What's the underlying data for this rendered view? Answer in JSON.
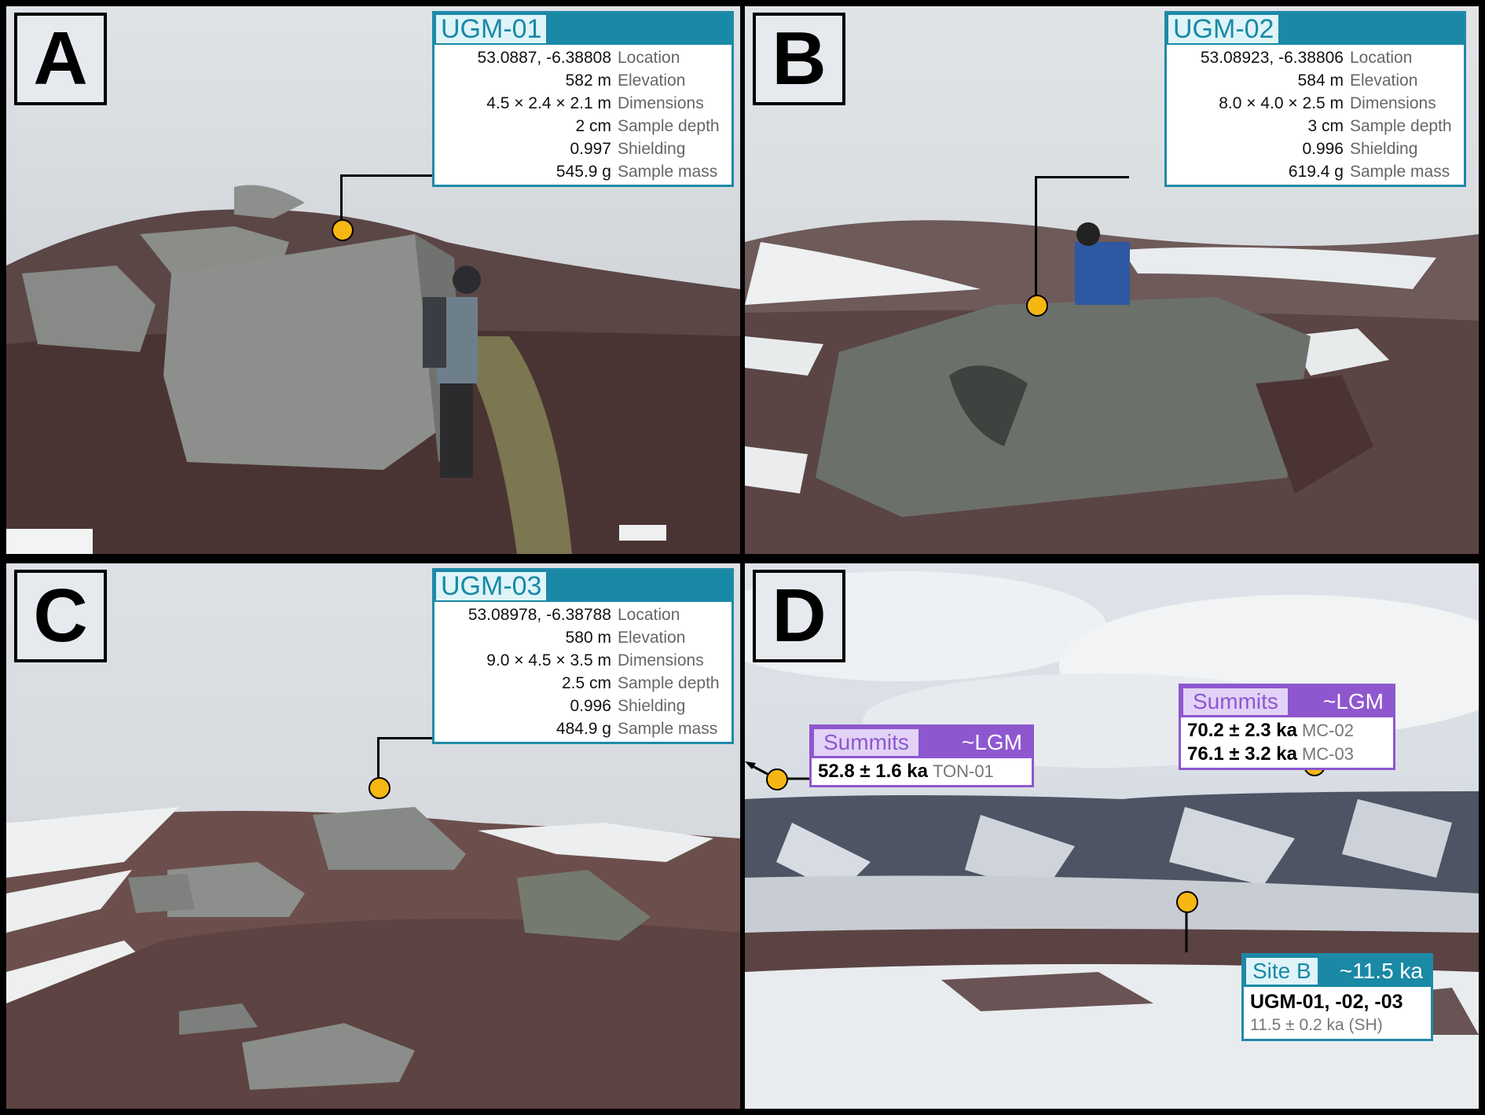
{
  "panels": {
    "A": {
      "letter": "A",
      "sample_id": "UGM-01",
      "rows": [
        {
          "value": "53.0887, -6.38808",
          "label": "Location"
        },
        {
          "value": "582 m",
          "label": "Elevation"
        },
        {
          "value": "4.5 × 2.4 × 2.1 m",
          "label": "Dimensions"
        },
        {
          "value": "2 cm",
          "label": "Sample depth"
        },
        {
          "value": "0.997",
          "label": "Shielding"
        },
        {
          "value": "545.9 g",
          "label": "Sample mass"
        }
      ]
    },
    "B": {
      "letter": "B",
      "sample_id": "UGM-02",
      "rows": [
        {
          "value": "53.08923, -6.38806",
          "label": "Location"
        },
        {
          "value": "584 m",
          "label": "Elevation"
        },
        {
          "value": "8.0 × 4.0 × 2.5 m",
          "label": "Dimensions"
        },
        {
          "value": "3 cm",
          "label": "Sample depth"
        },
        {
          "value": "0.996",
          "label": "Shielding"
        },
        {
          "value": "619.4 g",
          "label": "Sample mass"
        }
      ]
    },
    "C": {
      "letter": "C",
      "sample_id": "UGM-03",
      "rows": [
        {
          "value": "53.08978, -6.38788",
          "label": "Location"
        },
        {
          "value": "580 m",
          "label": "Elevation"
        },
        {
          "value": "9.0 × 4.5 × 3.5 m",
          "label": "Dimensions"
        },
        {
          "value": "2.5 cm",
          "label": "Sample depth"
        },
        {
          "value": "0.996",
          "label": "Shielding"
        },
        {
          "value": "484.9 g",
          "label": "Sample mass"
        }
      ]
    },
    "D": {
      "letter": "D",
      "summits_left": {
        "label": "Summits",
        "age_class": "~LGM",
        "entries": [
          {
            "age": "52.8 ± 1.6 ka",
            "sample": "TON-01"
          }
        ]
      },
      "summits_right": {
        "label": "Summits",
        "age_class": "~LGM",
        "entries": [
          {
            "age": "70.2 ± 2.3 ka",
            "sample": "MC-02"
          },
          {
            "age": "76.1 ± 3.2 ka",
            "sample": "MC-03"
          }
        ]
      },
      "site_b": {
        "label": "Site B",
        "age_class": "~11.5 ka",
        "samples": "UGM-01, -02, -03",
        "age": "11.5 ± 0.2 ka (SH)"
      }
    }
  },
  "colors": {
    "teal": "#1a89a6",
    "purple": "#8e57cf",
    "marker": "#f6b712"
  }
}
